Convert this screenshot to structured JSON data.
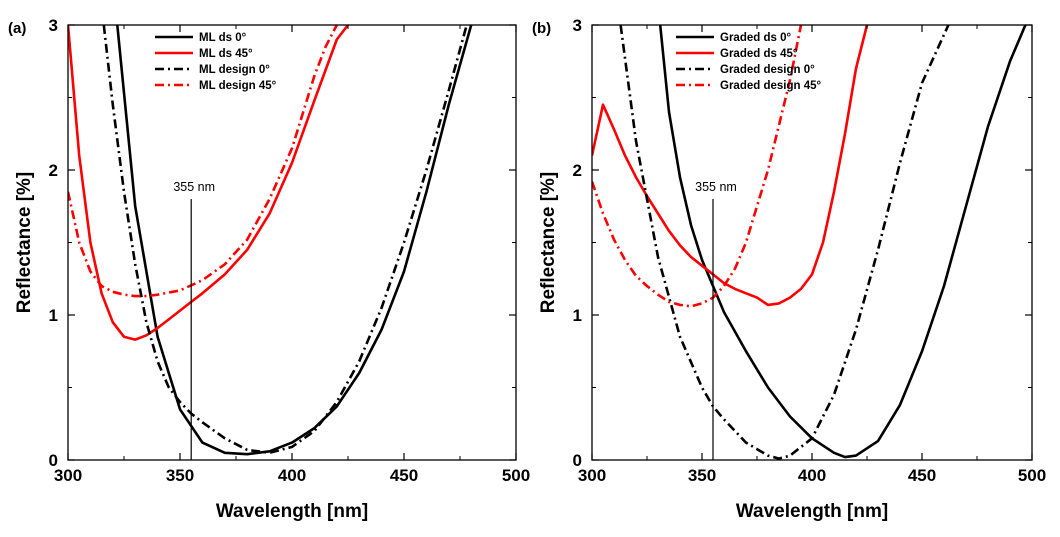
{
  "chart_data": [
    {
      "type": "line",
      "panel_label": "(a)",
      "xlabel": "Wavelength [nm]",
      "ylabel": "Reflectance [%]",
      "xlim": [
        300,
        500
      ],
      "ylim": [
        0,
        3
      ],
      "xticks": [
        300,
        350,
        400,
        450,
        500
      ],
      "yticks": [
        0,
        1,
        2,
        3
      ],
      "xtick_labels": [
        "300",
        "350",
        "400",
        "450",
        "500"
      ],
      "ytick_labels": [
        "0",
        "1",
        "2",
        "3"
      ],
      "legend_position": "top-right",
      "annotation": {
        "label": "355 nm",
        "x": 355,
        "y_top": 1.8
      },
      "series": [
        {
          "name": "ML ds 0°",
          "color": "#000000",
          "dash": "solid",
          "x": [
            322,
            330,
            340,
            350,
            360,
            370,
            380,
            390,
            400,
            410,
            420,
            430,
            440,
            450,
            460,
            470,
            480
          ],
          "y": [
            3.0,
            1.75,
            0.85,
            0.35,
            0.12,
            0.05,
            0.04,
            0.06,
            0.12,
            0.22,
            0.37,
            0.6,
            0.9,
            1.3,
            1.85,
            2.45,
            3.0
          ]
        },
        {
          "name": "ML ds 45°",
          "color": "#ff0000",
          "dash": "solid",
          "x": [
            300,
            305,
            310,
            315,
            320,
            325,
            330,
            335,
            340,
            345,
            350,
            355,
            360,
            370,
            380,
            390,
            400,
            410,
            420,
            425
          ],
          "y": [
            3.0,
            2.1,
            1.5,
            1.15,
            0.95,
            0.85,
            0.83,
            0.86,
            0.91,
            0.97,
            1.03,
            1.09,
            1.15,
            1.28,
            1.45,
            1.7,
            2.05,
            2.48,
            2.9,
            3.0
          ]
        },
        {
          "name": "ML design 0°",
          "color": "#000000",
          "dash": "dashdot",
          "x": [
            316,
            320,
            325,
            330,
            335,
            340,
            345,
            350,
            355,
            360,
            370,
            380,
            390,
            400,
            410,
            420,
            430,
            440,
            450,
            460,
            470,
            478
          ],
          "y": [
            3.0,
            2.45,
            1.85,
            1.35,
            0.95,
            0.68,
            0.5,
            0.4,
            0.32,
            0.26,
            0.15,
            0.07,
            0.05,
            0.09,
            0.2,
            0.4,
            0.68,
            1.05,
            1.5,
            2.0,
            2.55,
            3.0
          ]
        },
        {
          "name": "ML design 45°",
          "color": "#ff0000",
          "dash": "dashdot",
          "x": [
            300,
            305,
            310,
            315,
            320,
            325,
            330,
            335,
            340,
            350,
            360,
            370,
            380,
            390,
            400,
            410,
            415,
            420
          ],
          "y": [
            1.85,
            1.5,
            1.3,
            1.2,
            1.16,
            1.14,
            1.13,
            1.13,
            1.14,
            1.17,
            1.24,
            1.35,
            1.52,
            1.8,
            2.15,
            2.65,
            2.85,
            3.0
          ]
        }
      ]
    },
    {
      "type": "line",
      "panel_label": "(b)",
      "xlabel": "Wavelength [nm]",
      "ylabel": "Reflectance [%]",
      "xlim": [
        300,
        500
      ],
      "ylim": [
        0,
        3
      ],
      "xticks": [
        300,
        350,
        400,
        450,
        500
      ],
      "yticks": [
        0,
        1,
        2,
        3
      ],
      "xtick_labels": [
        "300",
        "350",
        "400",
        "450",
        "500"
      ],
      "ytick_labels": [
        "0",
        "1",
        "2",
        "3"
      ],
      "legend_position": "top-right",
      "annotation": {
        "label": "355 nm",
        "x": 355,
        "y_top": 1.8
      },
      "series": [
        {
          "name": "Graded ds 0°",
          "color": "#000000",
          "dash": "solid",
          "x": [
            331,
            335,
            340,
            345,
            350,
            355,
            360,
            370,
            380,
            390,
            400,
            410,
            415,
            420,
            430,
            440,
            450,
            460,
            470,
            480,
            490,
            497
          ],
          "y": [
            3.0,
            2.4,
            1.95,
            1.62,
            1.38,
            1.2,
            1.02,
            0.75,
            0.5,
            0.3,
            0.15,
            0.05,
            0.02,
            0.03,
            0.13,
            0.38,
            0.75,
            1.2,
            1.75,
            2.3,
            2.75,
            3.0
          ]
        },
        {
          "name": "Graded ds 45°",
          "color": "#ff0000",
          "dash": "solid",
          "x": [
            300,
            305,
            310,
            315,
            320,
            325,
            330,
            335,
            340,
            345,
            350,
            355,
            360,
            365,
            370,
            375,
            380,
            385,
            390,
            395,
            400,
            405,
            410,
            415,
            420,
            425
          ],
          "y": [
            2.1,
            2.45,
            2.28,
            2.1,
            1.95,
            1.82,
            1.7,
            1.58,
            1.48,
            1.4,
            1.34,
            1.28,
            1.22,
            1.18,
            1.15,
            1.12,
            1.07,
            1.08,
            1.12,
            1.18,
            1.28,
            1.5,
            1.85,
            2.25,
            2.7,
            3.0
          ]
        },
        {
          "name": "Graded design 0°",
          "color": "#000000",
          "dash": "dashdot",
          "x": [
            313,
            320,
            330,
            340,
            350,
            355,
            360,
            370,
            380,
            385,
            390,
            400,
            410,
            420,
            430,
            440,
            450,
            462
          ],
          "y": [
            3.0,
            2.2,
            1.4,
            0.85,
            0.5,
            0.37,
            0.28,
            0.12,
            0.03,
            0.01,
            0.03,
            0.15,
            0.45,
            0.9,
            1.45,
            2.05,
            2.6,
            3.0
          ]
        },
        {
          "name": "Graded design 45°",
          "color": "#ff0000",
          "dash": "dashdot",
          "x": [
            300,
            305,
            310,
            315,
            320,
            325,
            330,
            335,
            340,
            345,
            350,
            355,
            360,
            365,
            370,
            380,
            390,
            395
          ],
          "y": [
            1.92,
            1.7,
            1.52,
            1.38,
            1.27,
            1.2,
            1.14,
            1.09,
            1.07,
            1.06,
            1.08,
            1.12,
            1.2,
            1.32,
            1.5,
            2.0,
            2.62,
            3.0
          ]
        }
      ]
    }
  ]
}
